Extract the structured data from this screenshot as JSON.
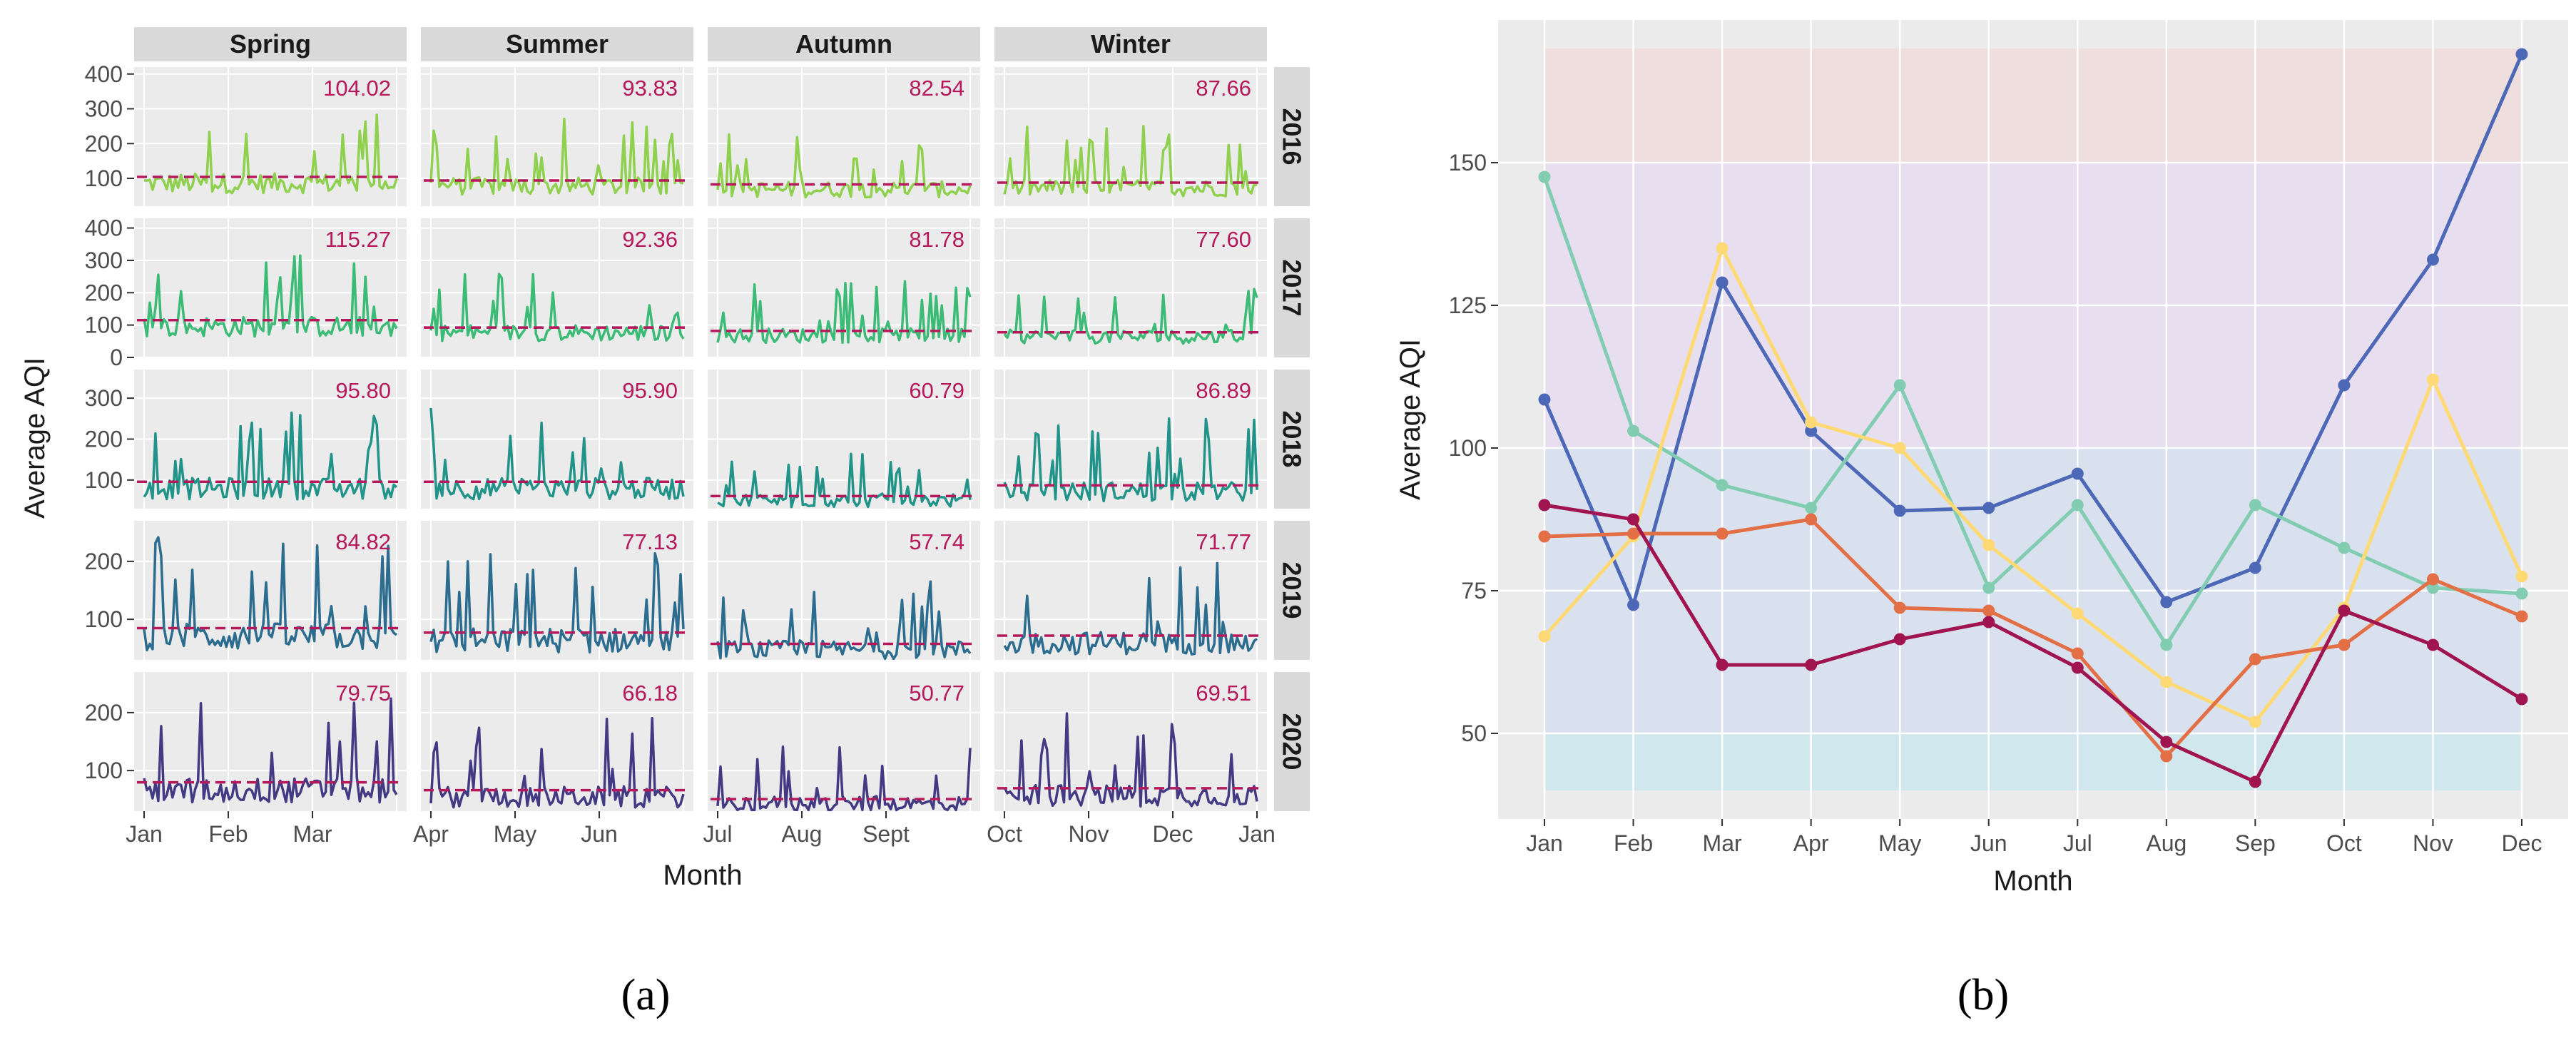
{
  "colors": {
    "panel_bg": "#ebebeb",
    "grid": "#ffffff",
    "strip_bg": "#d9d9d9",
    "mean_line": "#b5195b",
    "mean_text": "#b5195b",
    "year_colors": [
      "#8fd14f",
      "#3bbb75",
      "#229389",
      "#2c6c8e",
      "#443a83"
    ],
    "zone_colors": [
      "#cde6ee",
      "#d6dff0",
      "#e6ddf0",
      "#efdcdc"
    ],
    "series_colors": [
      "#4e68b8",
      "#82cdb2",
      "#ffd974",
      "#e36f46",
      "#a01450"
    ]
  },
  "captions": {
    "a": "(a)",
    "b": "(b)"
  },
  "chart_data": [
    {
      "type": "line",
      "facets": {
        "columns": [
          "Spring",
          "Summer",
          "Autumn",
          "Winter"
        ],
        "rows": [
          "2016",
          "2017",
          "2018",
          "2019",
          "2020"
        ]
      },
      "xlabel": "Month",
      "ylabel": "Average AQI",
      "x_ticks": [
        "Jan",
        "Feb",
        "Mar",
        "Apr",
        "May",
        "Jun",
        "Jul",
        "Aug",
        "Sept",
        "Oct",
        "Nov",
        "Dec",
        "Jan"
      ],
      "y_ticks": {
        "2016": [
          100,
          200,
          300,
          400
        ],
        "2017": [
          0,
          100,
          200,
          300,
          400
        ],
        "2018": [
          100,
          200,
          300
        ],
        "2019": [
          100,
          200
        ],
        "2020": [
          100,
          200
        ]
      },
      "ylim": {
        "2016": [
          20,
          420
        ],
        "2017": [
          0,
          430
        ],
        "2018": [
          30,
          370
        ],
        "2019": [
          30,
          270
        ],
        "2020": [
          30,
          270
        ]
      },
      "season_means": {
        "2016": [
          "104.02",
          "93.83",
          "82.54",
          "87.66"
        ],
        "2017": [
          "115.27",
          "92.36",
          "81.78",
          "77.60"
        ],
        "2018": [
          "95.80",
          "95.90",
          "60.79",
          "86.89"
        ],
        "2019": [
          "84.82",
          "77.13",
          "57.74",
          "71.77"
        ],
        "2020": [
          "79.75",
          "66.18",
          "50.77",
          "69.51"
        ]
      },
      "daily_series_note_free": true
    },
    {
      "type": "line",
      "xlabel": "Month",
      "ylabel": "Average AQI",
      "categories": [
        "Jan",
        "Feb",
        "Mar",
        "Apr",
        "May",
        "Jun",
        "Jul",
        "Aug",
        "Sep",
        "Oct",
        "Nov",
        "Dec"
      ],
      "y_ticks": [
        50,
        75,
        100,
        125,
        150
      ],
      "ylim": [
        35,
        175
      ],
      "bands": [
        [
          40,
          50
        ],
        [
          50,
          100
        ],
        [
          100,
          150
        ],
        [
          150,
          170
        ]
      ],
      "grid": true,
      "series": [
        {
          "values": [
            108.5,
            72.5,
            129,
            103,
            89,
            89.5,
            95.5,
            73,
            79,
            111,
            133,
            169
          ]
        },
        {
          "values": [
            147.5,
            103,
            93.5,
            89.5,
            111,
            75.5,
            90,
            65.5,
            90,
            82.5,
            75.5,
            74.5
          ]
        },
        {
          "values": [
            67,
            84.5,
            135,
            104.5,
            100,
            83,
            71,
            59,
            52,
            72,
            112,
            77.5
          ]
        },
        {
          "values": [
            84.5,
            85,
            85,
            87.5,
            72,
            71.5,
            64,
            46,
            63,
            65.5,
            77,
            70.5
          ]
        },
        {
          "values": [
            90,
            87.5,
            62,
            62,
            66.5,
            69.5,
            61.5,
            48.5,
            41.5,
            71.5,
            65.5,
            56
          ]
        }
      ]
    }
  ]
}
